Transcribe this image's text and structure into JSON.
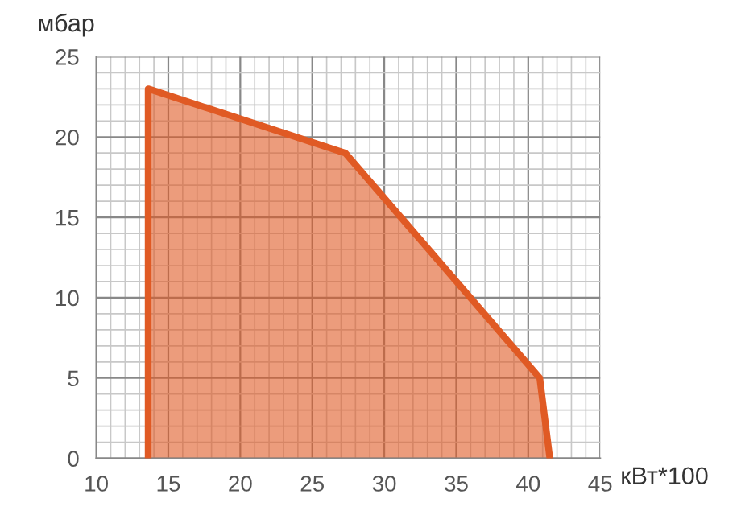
{
  "chart_data": {
    "type": "area",
    "xlabel": "кВт*100",
    "ylabel": "мбар",
    "series": [
      {
        "color": "#e05a24",
        "x": [
          13.6,
          13.6,
          27.3,
          40.8,
          41.5
        ],
        "values": [
          0,
          23,
          19,
          5,
          0
        ]
      }
    ],
    "xlim": [
      10,
      45
    ],
    "xticks": [
      10,
      15,
      20,
      25,
      30,
      35,
      40,
      45
    ],
    "ylim": [
      0,
      25
    ],
    "yticks": [
      0,
      5,
      10,
      15,
      20,
      25
    ],
    "grid": true
  }
}
